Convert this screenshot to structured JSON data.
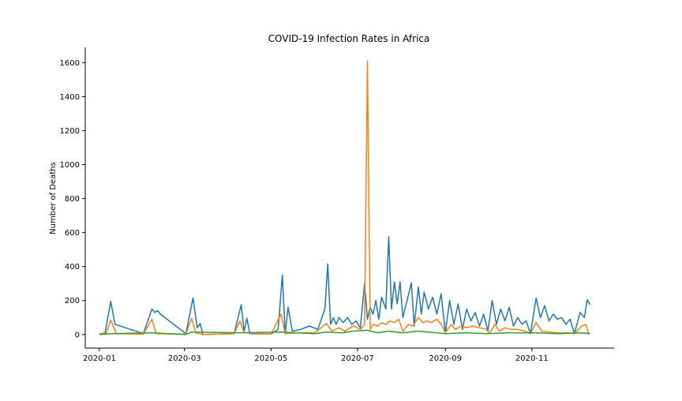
{
  "chart_data": {
    "type": "line",
    "title": "COVID-19 Infection Rates in Africa",
    "xlabel": "",
    "ylabel": "Number of Deaths",
    "xlim": [
      "2019-12-22",
      "2020-12-29"
    ],
    "ylim": [
      -80,
      1690
    ],
    "x_ticks": [
      "2020-01-01",
      "2020-03-01",
      "2020-05-01",
      "2020-07-01",
      "2020-09-01",
      "2020-11-01"
    ],
    "x_tick_labels": [
      "2020-01",
      "2020-03",
      "2020-05",
      "2020-07",
      "2020-09",
      "2020-11"
    ],
    "y_ticks": [
      0,
      200,
      400,
      600,
      800,
      1000,
      1200,
      1400,
      1600
    ],
    "grid": false,
    "legend": "none",
    "series": [
      {
        "color": "#1f77b4",
        "points": [
          [
            "2020-01-01",
            2
          ],
          [
            "2020-01-05",
            10
          ],
          [
            "2020-01-09",
            195
          ],
          [
            "2020-01-12",
            60
          ],
          [
            "2020-01-14",
            55
          ],
          [
            "2020-02-01",
            5
          ],
          [
            "2020-02-07",
            150
          ],
          [
            "2020-02-09",
            130
          ],
          [
            "2020-02-11",
            140
          ],
          [
            "2020-02-13",
            120
          ],
          [
            "2020-03-02",
            5
          ],
          [
            "2020-03-07",
            215
          ],
          [
            "2020-03-10",
            40
          ],
          [
            "2020-03-12",
            65
          ],
          [
            "2020-03-14",
            0
          ],
          [
            "2020-04-05",
            5
          ],
          [
            "2020-04-10",
            175
          ],
          [
            "2020-04-12",
            20
          ],
          [
            "2020-04-14",
            95
          ],
          [
            "2020-04-16",
            5
          ],
          [
            "2020-05-01",
            3
          ],
          [
            "2020-05-06",
            30
          ],
          [
            "2020-05-09",
            350
          ],
          [
            "2020-05-11",
            5
          ],
          [
            "2020-05-13",
            160
          ],
          [
            "2020-05-16",
            20
          ],
          [
            "2020-05-22",
            30
          ],
          [
            "2020-05-28",
            50
          ],
          [
            "2020-06-03",
            30
          ],
          [
            "2020-06-08",
            150
          ],
          [
            "2020-06-10",
            415
          ],
          [
            "2020-06-12",
            60
          ],
          [
            "2020-06-14",
            100
          ],
          [
            "2020-06-16",
            60
          ],
          [
            "2020-06-18",
            100
          ],
          [
            "2020-06-21",
            70
          ],
          [
            "2020-06-24",
            100
          ],
          [
            "2020-06-27",
            60
          ],
          [
            "2020-06-30",
            80
          ],
          [
            "2020-07-03",
            40
          ],
          [
            "2020-07-06",
            300
          ],
          [
            "2020-07-08",
            90
          ],
          [
            "2020-07-10",
            160
          ],
          [
            "2020-07-12",
            120
          ],
          [
            "2020-07-14",
            200
          ],
          [
            "2020-07-16",
            90
          ],
          [
            "2020-07-18",
            220
          ],
          [
            "2020-07-21",
            150
          ],
          [
            "2020-07-23",
            575
          ],
          [
            "2020-07-25",
            150
          ],
          [
            "2020-07-27",
            310
          ],
          [
            "2020-07-29",
            180
          ],
          [
            "2020-07-31",
            310
          ],
          [
            "2020-08-02",
            100
          ],
          [
            "2020-08-05",
            200
          ],
          [
            "2020-08-08",
            305
          ],
          [
            "2020-08-10",
            50
          ],
          [
            "2020-08-13",
            280
          ],
          [
            "2020-08-15",
            120
          ],
          [
            "2020-08-17",
            250
          ],
          [
            "2020-08-20",
            150
          ],
          [
            "2020-08-23",
            220
          ],
          [
            "2020-08-26",
            120
          ],
          [
            "2020-08-29",
            240
          ],
          [
            "2020-09-01",
            10
          ],
          [
            "2020-09-04",
            200
          ],
          [
            "2020-09-07",
            60
          ],
          [
            "2020-09-10",
            180
          ],
          [
            "2020-09-13",
            30
          ],
          [
            "2020-09-16",
            150
          ],
          [
            "2020-09-19",
            80
          ],
          [
            "2020-09-22",
            130
          ],
          [
            "2020-09-25",
            50
          ],
          [
            "2020-09-28",
            120
          ],
          [
            "2020-10-01",
            20
          ],
          [
            "2020-10-04",
            200
          ],
          [
            "2020-10-07",
            60
          ],
          [
            "2020-10-10",
            150
          ],
          [
            "2020-10-13",
            80
          ],
          [
            "2020-10-16",
            160
          ],
          [
            "2020-10-19",
            50
          ],
          [
            "2020-10-22",
            100
          ],
          [
            "2020-10-25",
            60
          ],
          [
            "2020-10-28",
            80
          ],
          [
            "2020-10-31",
            5
          ],
          [
            "2020-11-04",
            215
          ],
          [
            "2020-11-07",
            100
          ],
          [
            "2020-11-10",
            170
          ],
          [
            "2020-11-13",
            80
          ],
          [
            "2020-11-16",
            120
          ],
          [
            "2020-11-19",
            90
          ],
          [
            "2020-11-22",
            100
          ],
          [
            "2020-11-25",
            60
          ],
          [
            "2020-11-28",
            90
          ],
          [
            "2020-12-01",
            5
          ],
          [
            "2020-12-05",
            130
          ],
          [
            "2020-12-08",
            100
          ],
          [
            "2020-12-10",
            205
          ],
          [
            "2020-12-12",
            175
          ]
        ]
      },
      {
        "color": "#ff7f0e",
        "points": [
          [
            "2020-01-01",
            1
          ],
          [
            "2020-01-06",
            10
          ],
          [
            "2020-01-09",
            85
          ],
          [
            "2020-01-13",
            5
          ],
          [
            "2020-02-01",
            2
          ],
          [
            "2020-02-07",
            90
          ],
          [
            "2020-02-10",
            5
          ],
          [
            "2020-03-02",
            2
          ],
          [
            "2020-03-06",
            95
          ],
          [
            "2020-03-09",
            10
          ],
          [
            "2020-03-14",
            0
          ],
          [
            "2020-04-05",
            5
          ],
          [
            "2020-04-09",
            80
          ],
          [
            "2020-04-12",
            10
          ],
          [
            "2020-05-01",
            2
          ],
          [
            "2020-05-08",
            120
          ],
          [
            "2020-05-11",
            5
          ],
          [
            "2020-05-20",
            10
          ],
          [
            "2020-06-01",
            10
          ],
          [
            "2020-06-09",
            65
          ],
          [
            "2020-06-13",
            20
          ],
          [
            "2020-06-18",
            40
          ],
          [
            "2020-06-22",
            20
          ],
          [
            "2020-06-28",
            50
          ],
          [
            "2020-07-03",
            30
          ],
          [
            "2020-07-06",
            60
          ],
          [
            "2020-07-08",
            1610
          ],
          [
            "2020-07-10",
            30
          ],
          [
            "2020-07-12",
            60
          ],
          [
            "2020-07-15",
            50
          ],
          [
            "2020-07-18",
            70
          ],
          [
            "2020-07-21",
            60
          ],
          [
            "2020-07-24",
            80
          ],
          [
            "2020-07-27",
            70
          ],
          [
            "2020-07-30",
            90
          ],
          [
            "2020-08-02",
            20
          ],
          [
            "2020-08-06",
            60
          ],
          [
            "2020-08-09",
            50
          ],
          [
            "2020-08-13",
            100
          ],
          [
            "2020-08-16",
            70
          ],
          [
            "2020-08-19",
            80
          ],
          [
            "2020-08-22",
            70
          ],
          [
            "2020-08-26",
            90
          ],
          [
            "2020-08-29",
            60
          ],
          [
            "2020-09-01",
            10
          ],
          [
            "2020-09-05",
            60
          ],
          [
            "2020-09-08",
            30
          ],
          [
            "2020-09-12",
            50
          ],
          [
            "2020-09-16",
            40
          ],
          [
            "2020-09-20",
            50
          ],
          [
            "2020-09-25",
            40
          ],
          [
            "2020-09-30",
            30
          ],
          [
            "2020-10-02",
            5
          ],
          [
            "2020-10-06",
            60
          ],
          [
            "2020-10-09",
            20
          ],
          [
            "2020-10-13",
            40
          ],
          [
            "2020-10-17",
            30
          ],
          [
            "2020-10-22",
            30
          ],
          [
            "2020-10-27",
            20
          ],
          [
            "2020-10-31",
            5
          ],
          [
            "2020-11-04",
            70
          ],
          [
            "2020-11-08",
            20
          ],
          [
            "2020-11-14",
            15
          ],
          [
            "2020-11-20",
            10
          ],
          [
            "2020-11-26",
            10
          ],
          [
            "2020-12-01",
            5
          ],
          [
            "2020-12-06",
            50
          ],
          [
            "2020-12-09",
            60
          ],
          [
            "2020-12-11",
            5
          ],
          [
            "2020-12-12",
            10
          ]
        ]
      },
      {
        "color": "#2ca02c",
        "points": [
          [
            "2020-01-01",
            0
          ],
          [
            "2020-01-09",
            5
          ],
          [
            "2020-02-07",
            10
          ],
          [
            "2020-03-02",
            0
          ],
          [
            "2020-03-06",
            15
          ],
          [
            "2020-04-09",
            10
          ],
          [
            "2020-05-08",
            15
          ],
          [
            "2020-06-01",
            5
          ],
          [
            "2020-06-09",
            15
          ],
          [
            "2020-06-20",
            10
          ],
          [
            "2020-06-28",
            20
          ],
          [
            "2020-07-08",
            25
          ],
          [
            "2020-07-15",
            10
          ],
          [
            "2020-07-23",
            20
          ],
          [
            "2020-08-02",
            10
          ],
          [
            "2020-08-13",
            20
          ],
          [
            "2020-09-01",
            5
          ],
          [
            "2020-09-15",
            10
          ],
          [
            "2020-10-01",
            5
          ],
          [
            "2020-10-15",
            10
          ],
          [
            "2020-11-04",
            10
          ],
          [
            "2020-11-20",
            5
          ],
          [
            "2020-12-06",
            10
          ],
          [
            "2020-12-12",
            5
          ]
        ]
      }
    ]
  }
}
